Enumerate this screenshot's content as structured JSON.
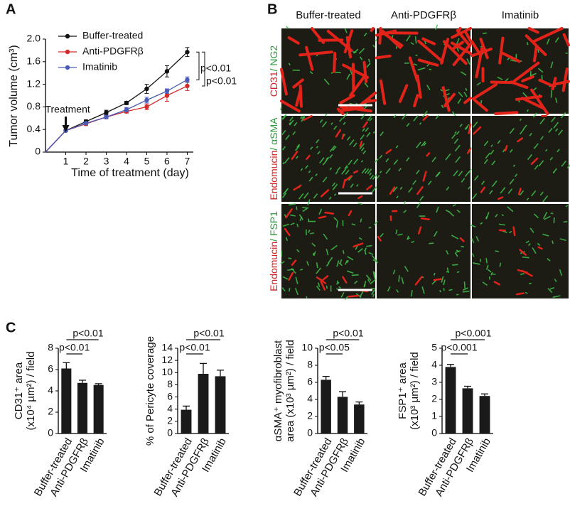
{
  "chart_data": [
    {
      "type": "line",
      "panel_label": "A",
      "y_label": "Tumor volume (cm³)",
      "x_label": "Time of treatment  (day)",
      "treatment_label": "Treatment",
      "significance": [
        "p<0.01",
        "p<0.01"
      ],
      "x": [
        0,
        1,
        2,
        3,
        4,
        5,
        6,
        7
      ],
      "xlim": [
        0,
        7.3
      ],
      "xticks": [
        1,
        2,
        3,
        4,
        5,
        6,
        7
      ],
      "ylim": [
        0,
        2
      ],
      "yticks": [
        0,
        0.4,
        0.8,
        1.2,
        1.6,
        {
          "value": 2,
          "label": "2.0"
        }
      ],
      "series": [
        {
          "name": "Buffer-treated",
          "color": "#111111",
          "values": [
            0,
            0.38,
            0.54,
            0.7,
            0.87,
            1.12,
            1.43,
            1.77
          ],
          "errors": [
            null,
            0.02,
            0.03,
            0.04,
            0.03,
            0.08,
            0.1,
            0.08
          ]
        },
        {
          "name": "Anti-PDGFRβ",
          "color": "#d42a2a",
          "values": [
            0,
            0.38,
            0.5,
            0.62,
            0.72,
            0.8,
            1.0,
            1.17
          ],
          "errors": [
            null,
            0.02,
            0.03,
            0.03,
            0.03,
            0.05,
            0.1,
            0.08
          ]
        },
        {
          "name": "Imatinib",
          "color": "#4a5bb8",
          "values": [
            0,
            0.38,
            0.51,
            0.62,
            0.75,
            0.92,
            1.08,
            1.28
          ],
          "errors": [
            null,
            0.02,
            0.02,
            0.03,
            0.04,
            0.05,
            0.04,
            0.05
          ]
        }
      ]
    },
    {
      "type": "bar",
      "panel_label": "C",
      "y_label": [
        "CD31⁺ area",
        "(x10⁴ µm²) / field"
      ],
      "significance": [
        "p<0.01",
        "p<0.01"
      ],
      "categories": [
        "Buffer-treated",
        "Anti-PDGFRβ",
        "Imatinib"
      ],
      "values": [
        6.1,
        4.75,
        4.55
      ],
      "errors": [
        0.55,
        0.25,
        0.12
      ],
      "color": "#1a1a1a",
      "ylim": [
        0,
        8
      ],
      "yticks": [
        0,
        2,
        4,
        6,
        8
      ]
    },
    {
      "type": "bar",
      "y_label": [
        "% of Pericyte coverage"
      ],
      "significance": [
        "p<0.01",
        "p<0.01"
      ],
      "categories": [
        "Buffer-treated",
        "Anti-PDGFRβ",
        "Imatinib"
      ],
      "values": [
        3.9,
        9.8,
        9.4
      ],
      "errors": [
        0.6,
        1.7,
        1.0
      ],
      "color": "#1a1a1a",
      "ylim": [
        0,
        14
      ],
      "yticks": [
        0,
        2,
        4,
        6,
        8,
        10,
        12,
        14
      ]
    },
    {
      "type": "bar",
      "y_label": [
        "αSMA⁺ myofibroblast",
        "area (x10³ µm²) / field"
      ],
      "significance": [
        "p<0.05",
        "p<0.01"
      ],
      "categories": [
        "Buffer-treated",
        "Anti-PDGFRβ",
        "Imatinib"
      ],
      "values": [
        6.3,
        4.3,
        3.4
      ],
      "errors": [
        0.4,
        0.6,
        0.3
      ],
      "color": "#1a1a1a",
      "ylim": [
        0,
        10
      ],
      "yticks": [
        0,
        2,
        4,
        6,
        8,
        10
      ]
    },
    {
      "type": "bar",
      "y_label": [
        "FSP1⁺ area",
        "(x10³ µm²) / field"
      ],
      "significance": [
        "p<0.001",
        "p<0.001"
      ],
      "categories": [
        "Buffer-treated",
        "Anti-PDGFRβ",
        "Imatinib"
      ],
      "values": [
        3.9,
        2.65,
        2.2
      ],
      "errors": [
        0.15,
        0.12,
        0.12
      ],
      "color": "#1a1a1a",
      "ylim": [
        0,
        5
      ],
      "yticks": [
        0,
        1,
        2,
        3,
        4,
        5
      ]
    }
  ],
  "panel_b": {
    "label": "B",
    "columns": [
      "Buffer-treated",
      "Anti-PDGFRβ",
      "Imatinib"
    ],
    "rows": [
      {
        "red": "CD31",
        "green": "/ NG2"
      },
      {
        "red": "Endomucin",
        "green": "/ αSMA"
      },
      {
        "red": "Endomucin",
        "green": "/ FSP1"
      }
    ]
  }
}
